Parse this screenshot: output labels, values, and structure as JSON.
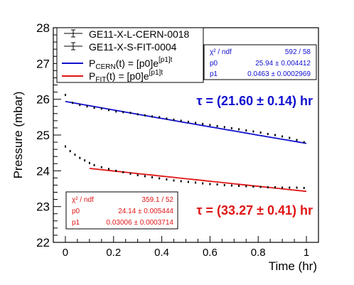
{
  "chart_data": {
    "type": "scatter",
    "title": "",
    "xlabel": "Time (hr)",
    "ylabel": "Pressure (mbar)",
    "xlim": [
      -0.05,
      1.05
    ],
    "ylim": [
      22,
      28
    ],
    "x_ticks": [
      "0",
      "0.2",
      "0.4",
      "0.6",
      "0.8",
      "1"
    ],
    "y_ticks": [
      "22",
      "23",
      "24",
      "25",
      "26",
      "27",
      "28"
    ],
    "grid": false,
    "legend": {
      "placement": "top-left",
      "entries": [
        "GE11-X-L-CERN-0018",
        "GE11-X-S-FIT-0004"
      ],
      "fit_cern": {
        "prefix": "P",
        "sub": "CERN",
        "mid": "(t) = [p0]e",
        "sup": "[p1]t"
      },
      "fit_fit": {
        "prefix": "P",
        "sub": "FIT",
        "mid": "(t) = [p0]e",
        "sup": "[p1]t"
      }
    },
    "series": [
      {
        "name": "GE11-X-L-CERN-0018",
        "color": "#000000",
        "x": [
          0.0,
          0.03,
          0.06,
          0.09,
          0.12,
          0.15,
          0.18,
          0.21,
          0.24,
          0.27,
          0.3,
          0.33,
          0.36,
          0.39,
          0.42,
          0.45,
          0.48,
          0.51,
          0.54,
          0.57,
          0.6,
          0.63,
          0.66,
          0.69,
          0.72,
          0.75,
          0.78,
          0.81,
          0.84,
          0.87,
          0.9,
          0.93,
          0.96,
          0.99
        ],
        "y": [
          26.12,
          25.9,
          25.84,
          25.8,
          25.76,
          25.74,
          25.7,
          25.66,
          25.64,
          25.62,
          25.58,
          25.55,
          25.52,
          25.5,
          25.46,
          25.43,
          25.4,
          25.37,
          25.34,
          25.31,
          25.28,
          25.25,
          25.22,
          25.19,
          25.16,
          25.13,
          25.1,
          25.07,
          25.03,
          25.0,
          24.96,
          24.92,
          24.86,
          24.8
        ]
      },
      {
        "name": "GE11-X-S-FIT-0004",
        "color": "#000000",
        "x": [
          0.0,
          0.02,
          0.04,
          0.06,
          0.08,
          0.1,
          0.12,
          0.15,
          0.18,
          0.21,
          0.24,
          0.27,
          0.3,
          0.33,
          0.36,
          0.39,
          0.42,
          0.45,
          0.48,
          0.51,
          0.54,
          0.57,
          0.6,
          0.63,
          0.66,
          0.69,
          0.72,
          0.75,
          0.78,
          0.81,
          0.84,
          0.87,
          0.9,
          0.93,
          0.96,
          0.99
        ],
        "y": [
          24.68,
          24.55,
          24.45,
          24.36,
          24.29,
          24.22,
          24.16,
          24.1,
          24.05,
          24.0,
          23.96,
          23.92,
          23.88,
          23.85,
          23.82,
          23.79,
          23.76,
          23.73,
          23.71,
          23.69,
          23.67,
          23.65,
          23.63,
          23.62,
          23.6,
          23.59,
          23.58,
          23.57,
          23.56,
          23.55,
          23.54,
          23.54,
          23.53,
          23.53,
          23.53,
          23.52
        ]
      }
    ],
    "fits": [
      {
        "name": "CERN fit",
        "color": "#1010d0",
        "p0": 25.94,
        "p1": -0.0463,
        "x_range": [
          0.0,
          1.0
        ],
        "tau_label": "τ = (21.60 ± 0.14) hr",
        "stats": {
          "rows": [
            {
              "label": "χ² / ndf",
              "value": "592 / 58"
            },
            {
              "label": "p0",
              "value": "25.94 ± 0.004412"
            },
            {
              "label": "p1",
              "value": "0.0463 ± 0.0002969"
            }
          ]
        }
      },
      {
        "name": "FIT fit",
        "color": "#e01515",
        "p0": 24.14,
        "p1": -0.03006,
        "x_range": [
          0.1,
          1.0
        ],
        "tau_label": "τ = (33.27 ± 0.41) hr",
        "stats": {
          "rows": [
            {
              "label": "χ² / ndf",
              "value": "359.1 / 52"
            },
            {
              "label": "p0",
              "value": "24.14 ± 0.005444"
            },
            {
              "label": "p1",
              "value": "0.03006 ± 0.0003714"
            }
          ]
        }
      }
    ]
  }
}
